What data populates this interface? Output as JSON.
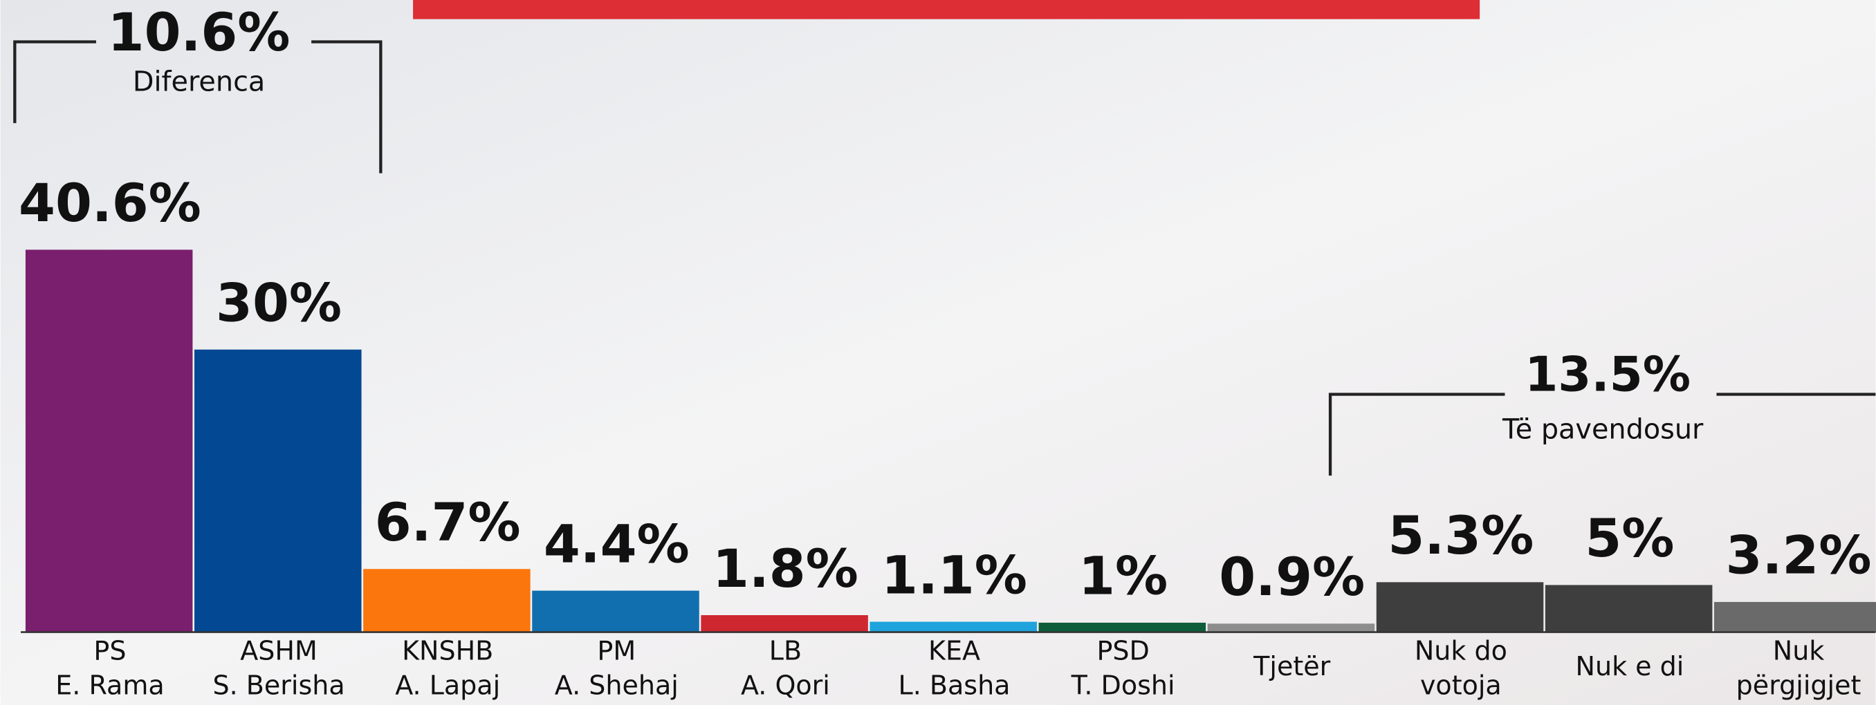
{
  "chart_data": {
    "type": "bar",
    "categories": [
      [
        "PS",
        "E. Rama"
      ],
      [
        "ASHM",
        "S. Berisha"
      ],
      [
        "KNSHB",
        "A. Lapaj"
      ],
      [
        "PM",
        "A. Shehaj"
      ],
      [
        "LB",
        "A. Qori"
      ],
      [
        "KEA",
        "L. Basha"
      ],
      [
        "PSD",
        "T. Doshi"
      ],
      [
        "Tjetër"
      ],
      [
        "Nuk do",
        "votoja"
      ],
      [
        "Nuk e di"
      ],
      [
        "Nuk",
        "përgjigjet"
      ]
    ],
    "values": [
      40.6,
      30,
      6.7,
      4.4,
      1.8,
      1.1,
      1,
      0.9,
      5.3,
      5,
      3.2
    ],
    "value_labels": [
      "40.6%",
      "30%",
      "6.7%",
      "4.4%",
      "1.8%",
      "1.1%",
      "1%",
      "0.9%",
      "5.3%",
      "5%",
      "3.2%"
    ],
    "colors": [
      "#7a1f6e",
      "#034892",
      "#fb760d",
      "#116fb0",
      "#cf2730",
      "#1fa3dd",
      "#0f5e3b",
      "#8d8d8d",
      "#3e3e3e",
      "#3e3e3e",
      "#6a6a6a"
    ],
    "annotations": [
      {
        "label": "10.6%",
        "text": "Diferenca"
      },
      {
        "label": "13.5%",
        "text": "Të pavendosur"
      }
    ]
  }
}
